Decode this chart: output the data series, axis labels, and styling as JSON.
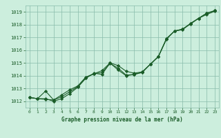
{
  "title": "Graphe pression niveau de la mer (hPa)",
  "background_color": "#cceedd",
  "grid_color": "#88bbaa",
  "line_color": "#1a5c28",
  "marker_color": "#1a5c28",
  "xlim": [
    -0.5,
    23.5
  ],
  "ylim": [
    1011.5,
    1019.5
  ],
  "yticks": [
    1012,
    1013,
    1014,
    1015,
    1016,
    1017,
    1018,
    1019
  ],
  "xticks": [
    0,
    1,
    2,
    3,
    4,
    5,
    6,
    7,
    8,
    9,
    10,
    11,
    12,
    13,
    14,
    15,
    16,
    17,
    18,
    19,
    20,
    21,
    22,
    23
  ],
  "series1_x": [
    0,
    1,
    2,
    3,
    4,
    5,
    6,
    7,
    8,
    9,
    10,
    11,
    12,
    13,
    14,
    15,
    16,
    17,
    18,
    19,
    20,
    21,
    22,
    23
  ],
  "series1_y": [
    1012.3,
    1012.2,
    1012.2,
    1012.0,
    1012.2,
    1012.6,
    1013.1,
    1013.8,
    1014.2,
    1014.1,
    1015.0,
    1014.45,
    1014.0,
    1014.1,
    1014.3,
    1014.9,
    1015.5,
    1016.9,
    1017.5,
    1017.6,
    1018.1,
    1018.5,
    1018.9,
    1019.1
  ],
  "series2_x": [
    0,
    1,
    2,
    3,
    4,
    5,
    6,
    7,
    8,
    9,
    10,
    11,
    12,
    13,
    14,
    15,
    16,
    17,
    18,
    19,
    20,
    21,
    22,
    23
  ],
  "series2_y": [
    1012.3,
    1012.2,
    1012.8,
    1012.1,
    1012.5,
    1012.9,
    1013.2,
    1013.9,
    1014.15,
    1014.4,
    1015.0,
    1014.8,
    1014.35,
    1014.2,
    1014.3,
    1014.9,
    1015.5,
    1016.9,
    1017.5,
    1017.65,
    1018.1,
    1018.5,
    1018.9,
    1019.1
  ],
  "series3_x": [
    0,
    1,
    2,
    3,
    4,
    5,
    6,
    7,
    8,
    9,
    10,
    11,
    12,
    13,
    14,
    15,
    16,
    17,
    18,
    19,
    20,
    21,
    22,
    23
  ],
  "series3_y": [
    1012.3,
    1012.2,
    1012.15,
    1012.1,
    1012.35,
    1012.75,
    1013.15,
    1013.85,
    1014.15,
    1014.25,
    1014.95,
    1014.6,
    1014.05,
    1014.1,
    1014.25,
    1014.9,
    1015.5,
    1016.85,
    1017.5,
    1017.65,
    1018.05,
    1018.5,
    1018.8,
    1019.05
  ]
}
